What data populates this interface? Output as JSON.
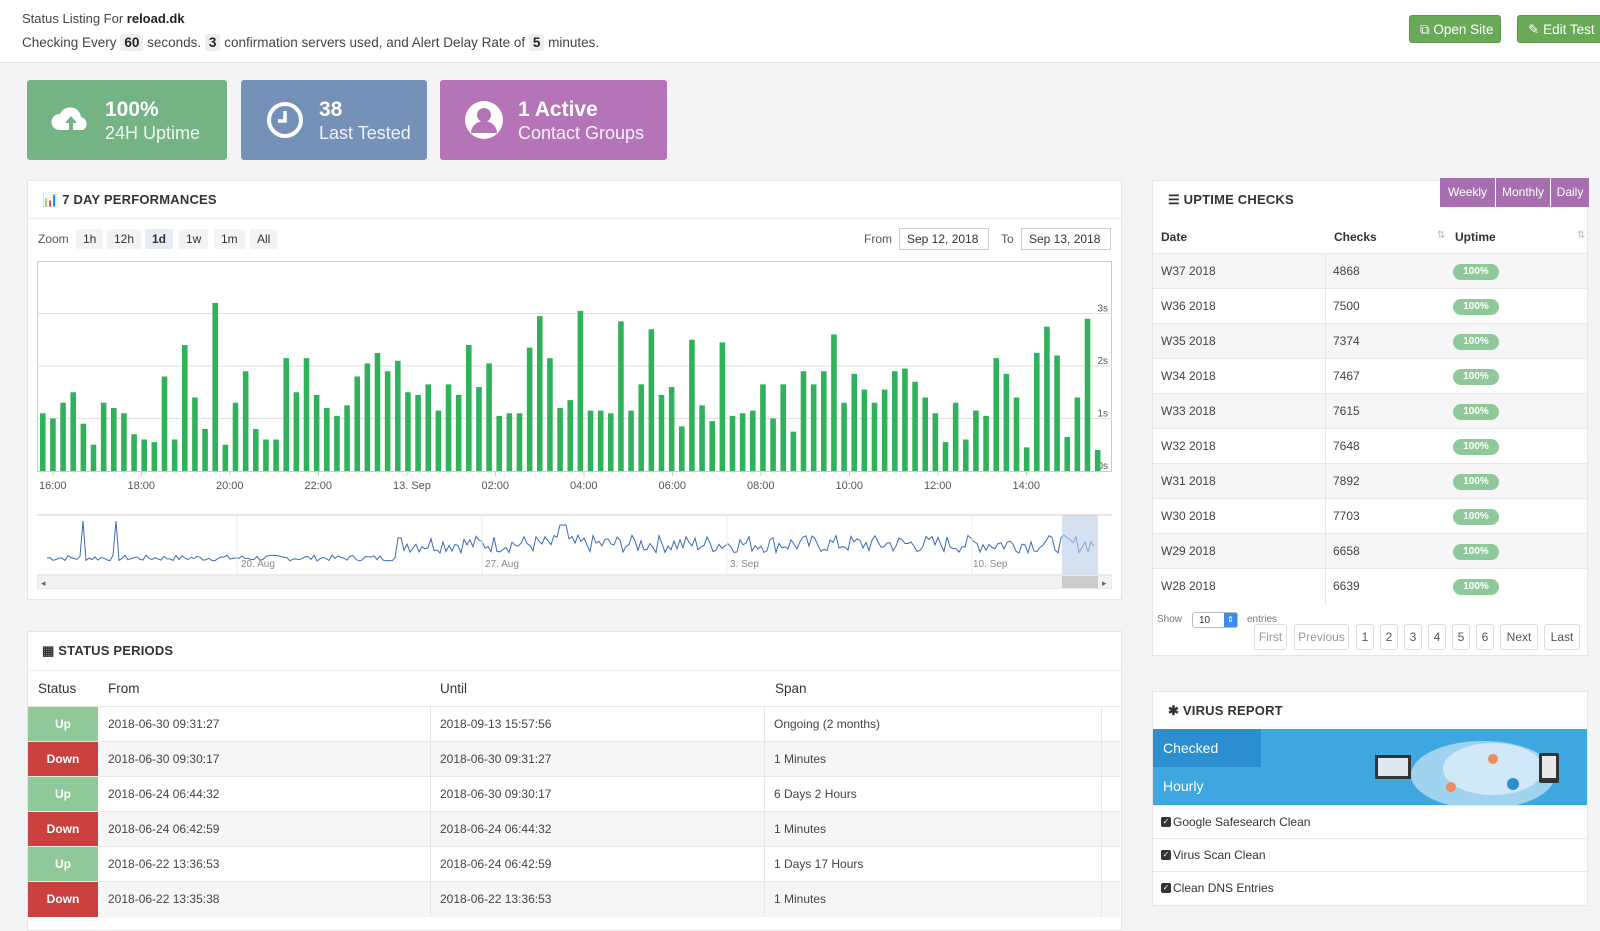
{
  "header": {
    "listing_prefix": "Status Listing For",
    "domain": "reload.dk",
    "checking_every": "Checking Every",
    "interval": "60",
    "seconds_text": "seconds.",
    "servers": "3",
    "servers_text": "confirmation servers used, and Alert Delay Rate of",
    "delay": "5",
    "minutes_text": "minutes.",
    "open_site": "Open Site",
    "edit_test": "Edit Test"
  },
  "tiles": [
    {
      "value": "100%",
      "label": "24H Uptime",
      "color": "#74b383"
    },
    {
      "value": "38",
      "label": "Last Tested",
      "color": "#7691b7"
    },
    {
      "value": "1 Active",
      "label": "Contact Groups",
      "color": "#b574b7"
    }
  ],
  "performance": {
    "title": "7 DAY PERFORMANCES",
    "zoom_label": "Zoom",
    "zoom_options": [
      "1h",
      "12h",
      "1d",
      "1w",
      "1m",
      "All"
    ],
    "zoom_active": "1d",
    "from_label": "From",
    "from_value": "Sep 12, 2018",
    "to_label": "To",
    "to_value": "Sep 13, 2018",
    "navigator_labels": [
      "20. Aug",
      "27. Aug",
      "3. Sep",
      "10. Sep"
    ]
  },
  "chart_data": {
    "type": "bar",
    "color": "#2fb259",
    "y_ticks": [
      "0s",
      "1s",
      "2s",
      "3s"
    ],
    "ylim": [
      0,
      4
    ],
    "x_ticks": [
      "16:00",
      "18:00",
      "20:00",
      "22:00",
      "13. Sep",
      "02:00",
      "04:00",
      "06:00",
      "08:00",
      "10:00",
      "12:00",
      "14:00"
    ],
    "values": [
      1.1,
      1.0,
      1.3,
      1.5,
      0.9,
      0.5,
      1.3,
      1.2,
      1.1,
      0.7,
      0.6,
      0.55,
      1.8,
      0.6,
      2.4,
      1.4,
      0.8,
      3.2,
      0.5,
      1.3,
      1.9,
      0.8,
      0.6,
      0.6,
      2.15,
      1.5,
      2.15,
      1.45,
      1.2,
      1.05,
      1.25,
      1.8,
      2.05,
      2.25,
      1.9,
      2.1,
      1.5,
      1.45,
      1.65,
      1.15,
      1.65,
      1.45,
      2.4,
      1.6,
      2.05,
      1.05,
      1.1,
      1.1,
      2.35,
      2.95,
      2.15,
      1.2,
      1.35,
      3.05,
      1.15,
      1.15,
      1.1,
      2.85,
      1.15,
      1.65,
      2.7,
      1.45,
      1.6,
      0.85,
      2.5,
      1.25,
      0.95,
      2.45,
      1.05,
      1.1,
      1.15,
      1.65,
      1.0,
      1.65,
      0.75,
      1.9,
      1.65,
      1.9,
      2.6,
      1.3,
      1.85,
      1.55,
      1.3,
      1.55,
      1.9,
      1.95,
      1.7,
      1.4,
      1.1,
      0.55,
      1.3,
      0.6,
      1.15,
      1.05,
      2.15,
      1.85,
      1.4,
      0.45,
      2.25,
      2.75,
      2.2,
      0.65,
      1.4,
      2.9,
      0.4
    ],
    "navigator": "uptime response history Aug - Sep"
  },
  "uptime_checks": {
    "title": "UPTIME CHECKS",
    "tabs": [
      "Weekly",
      "Monthly",
      "Daily"
    ],
    "headers": [
      "Date",
      "Checks",
      "Uptime"
    ],
    "rows": [
      {
        "date": "W37 2018",
        "checks": "4868",
        "uptime": "100%"
      },
      {
        "date": "W36 2018",
        "checks": "7500",
        "uptime": "100%"
      },
      {
        "date": "W35 2018",
        "checks": "7374",
        "uptime": "100%"
      },
      {
        "date": "W34 2018",
        "checks": "7467",
        "uptime": "100%"
      },
      {
        "date": "W33 2018",
        "checks": "7615",
        "uptime": "100%"
      },
      {
        "date": "W32 2018",
        "checks": "7648",
        "uptime": "100%"
      },
      {
        "date": "W31 2018",
        "checks": "7892",
        "uptime": "100%"
      },
      {
        "date": "W30 2018",
        "checks": "7703",
        "uptime": "100%"
      },
      {
        "date": "W29 2018",
        "checks": "6658",
        "uptime": "100%"
      },
      {
        "date": "W28 2018",
        "checks": "6639",
        "uptime": "100%"
      }
    ],
    "show_label": "Show",
    "show_value": "10",
    "entries_label": "entries",
    "pager": [
      "First",
      "Previous",
      "1",
      "2",
      "3",
      "4",
      "5",
      "6",
      "Next",
      "Last"
    ]
  },
  "status_periods": {
    "title": "STATUS PERIODS",
    "headers": [
      "Status",
      "From",
      "Until",
      "Span"
    ],
    "rows": [
      {
        "status": "Up",
        "from": "2018-06-30 09:31:27",
        "until": "2018-09-13 15:57:56",
        "span": "Ongoing (2 months)"
      },
      {
        "status": "Down",
        "from": "2018-06-30 09:30:17",
        "until": "2018-06-30 09:31:27",
        "span": "1 Minutes"
      },
      {
        "status": "Up",
        "from": "2018-06-24 06:44:32",
        "until": "2018-06-30 09:30:17",
        "span": "6 Days 2 Hours"
      },
      {
        "status": "Down",
        "from": "2018-06-24 06:42:59",
        "until": "2018-06-24 06:44:32",
        "span": "1 Minutes"
      },
      {
        "status": "Up",
        "from": "2018-06-22 13:36:53",
        "until": "2018-06-24 06:42:59",
        "span": "1 Days 17 Hours"
      },
      {
        "status": "Down",
        "from": "2018-06-22 13:35:38",
        "until": "2018-06-22 13:36:53",
        "span": "1 Minutes"
      }
    ]
  },
  "virus_report": {
    "title": "VIRUS REPORT",
    "banner": "Checked Hourly",
    "items": [
      "Google Safesearch Clean",
      "Virus Scan Clean",
      "Clean DNS Entries"
    ]
  }
}
